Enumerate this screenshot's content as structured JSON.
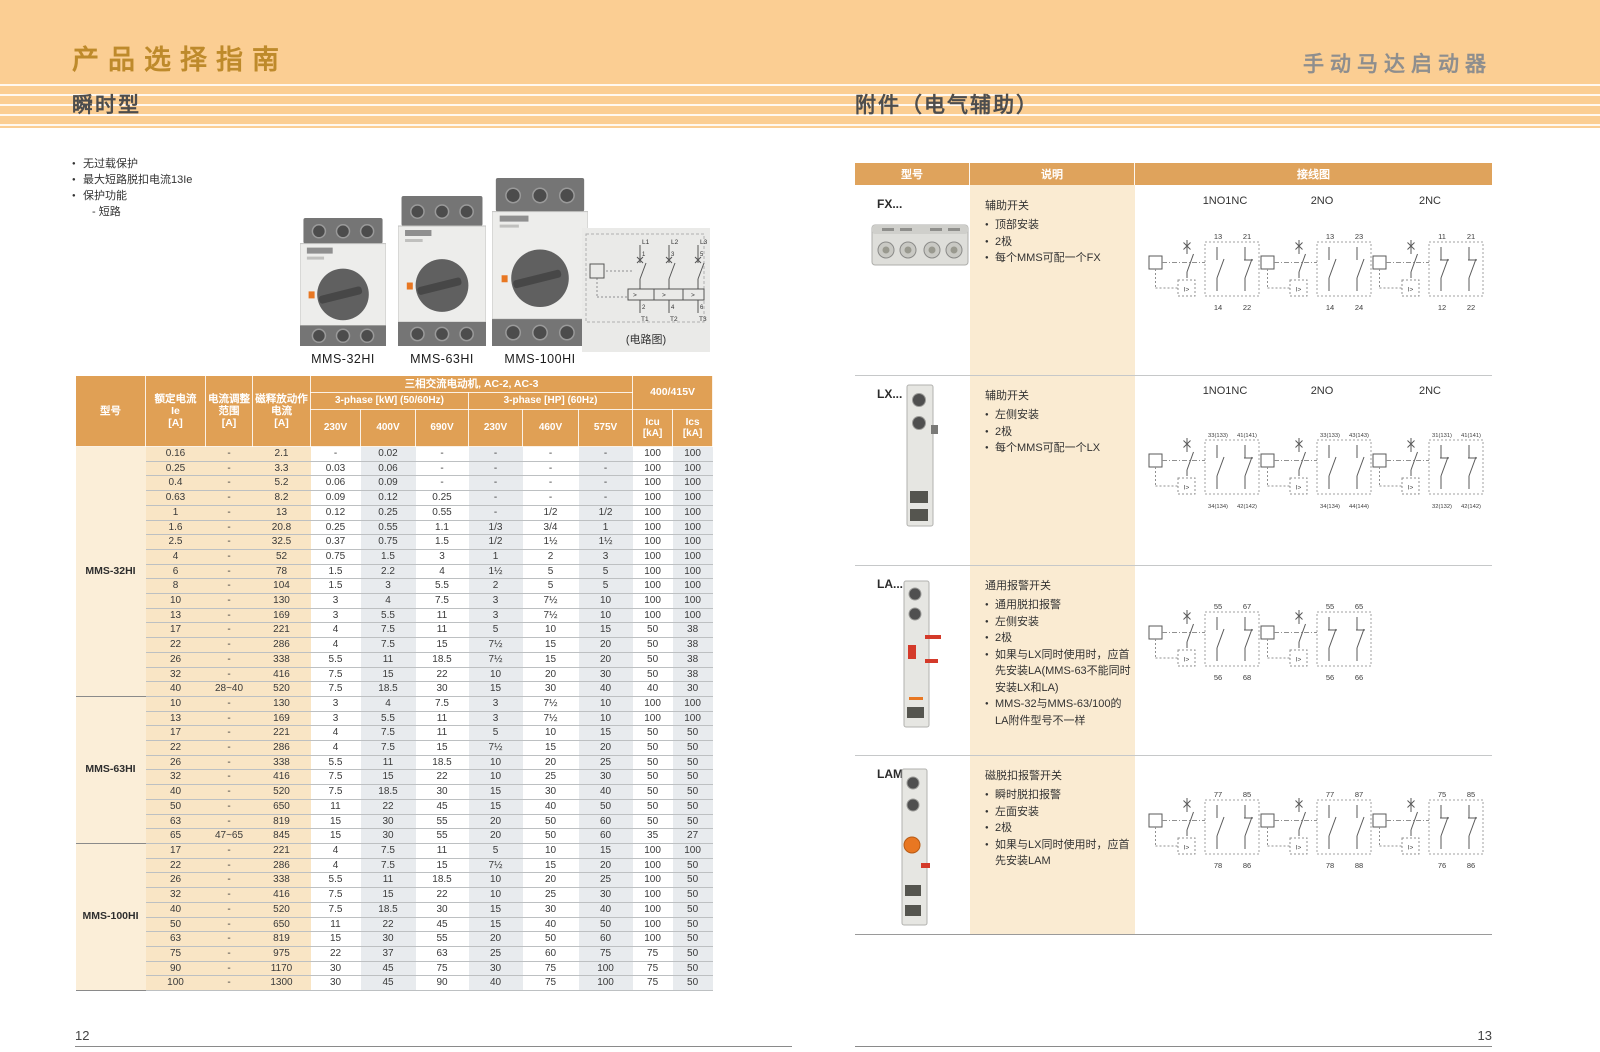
{
  "band": {
    "title_left": "产品选择指南",
    "title_right": "手动马达启动器",
    "section_left": "瞬时型",
    "section_right": "附件（电气辅助）"
  },
  "left": {
    "page_number": "12",
    "features": [
      "无过载保护",
      "最大短路脱扣电流13Ie",
      "保护功能"
    ],
    "feature_sub": "- 短路",
    "products": [
      "MMS-32HI",
      "MMS-63HI",
      "MMS-100HI"
    ],
    "circuit": {
      "caption": "(电路图)",
      "phases": [
        "L1",
        "L2",
        "L3"
      ],
      "top_terminals": [
        "1",
        "3",
        "5"
      ],
      "bottom_terminals": [
        "2",
        "4",
        "6"
      ],
      "outputs": [
        "T1",
        "T2",
        "T3"
      ]
    },
    "table": {
      "header": {
        "model": "型号",
        "rated_current": "额定电流\nIe\n[A]",
        "adjust_range": "电流调整\n范围\n[A]",
        "release_current": "磁释放动作\n电流\n[A]",
        "motor_group": "三相交流电动机, AC-2, AC-3",
        "kw_group": "3-phase [kW] (50/60Hz)",
        "hp_group": "3-phase [HP] (60Hz)",
        "voltage_group": "400/415V",
        "kw_volts": [
          "230V",
          "400V",
          "690V"
        ],
        "hp_volts": [
          "230V",
          "460V",
          "575V"
        ],
        "icu": "Icu\n[kA]",
        "ics": "Ics\n[kA]"
      },
      "groups": [
        {
          "model": "MMS-32HI",
          "rows": [
            [
              "0.16",
              "-",
              "2.1",
              "-",
              "0.02",
              "-",
              "-",
              "-",
              "-",
              "100",
              "100"
            ],
            [
              "0.25",
              "-",
              "3.3",
              "0.03",
              "0.06",
              "-",
              "-",
              "-",
              "-",
              "100",
              "100"
            ],
            [
              "0.4",
              "-",
              "5.2",
              "0.06",
              "0.09",
              "-",
              "-",
              "-",
              "-",
              "100",
              "100"
            ],
            [
              "0.63",
              "-",
              "8.2",
              "0.09",
              "0.12",
              "0.25",
              "-",
              "-",
              "-",
              "100",
              "100"
            ],
            [
              "1",
              "-",
              "13",
              "0.12",
              "0.25",
              "0.55",
              "-",
              "1/2",
              "1/2",
              "100",
              "100"
            ],
            [
              "1.6",
              "-",
              "20.8",
              "0.25",
              "0.55",
              "1.1",
              "1/3",
              "3/4",
              "1",
              "100",
              "100"
            ],
            [
              "2.5",
              "-",
              "32.5",
              "0.37",
              "0.75",
              "1.5",
              "1/2",
              "1½",
              "1½",
              "100",
              "100"
            ],
            [
              "4",
              "-",
              "52",
              "0.75",
              "1.5",
              "3",
              "1",
              "2",
              "3",
              "100",
              "100"
            ],
            [
              "6",
              "-",
              "78",
              "1.5",
              "2.2",
              "4",
              "1½",
              "5",
              "5",
              "100",
              "100"
            ],
            [
              "8",
              "-",
              "104",
              "1.5",
              "3",
              "5.5",
              "2",
              "5",
              "5",
              "100",
              "100"
            ],
            [
              "10",
              "-",
              "130",
              "3",
              "4",
              "7.5",
              "3",
              "7½",
              "10",
              "100",
              "100"
            ],
            [
              "13",
              "-",
              "169",
              "3",
              "5.5",
              "11",
              "3",
              "7½",
              "10",
              "100",
              "100"
            ],
            [
              "17",
              "-",
              "221",
              "4",
              "7.5",
              "11",
              "5",
              "10",
              "15",
              "50",
              "38"
            ],
            [
              "22",
              "-",
              "286",
              "4",
              "7.5",
              "15",
              "7½",
              "15",
              "20",
              "50",
              "38"
            ],
            [
              "26",
              "-",
              "338",
              "5.5",
              "11",
              "18.5",
              "7½",
              "15",
              "20",
              "50",
              "38"
            ],
            [
              "32",
              "-",
              "416",
              "7.5",
              "15",
              "22",
              "10",
              "20",
              "30",
              "50",
              "38"
            ],
            [
              "40",
              "28~40",
              "520",
              "7.5",
              "18.5",
              "30",
              "15",
              "30",
              "40",
              "40",
              "30"
            ]
          ]
        },
        {
          "model": "MMS-63HI",
          "rows": [
            [
              "10",
              "-",
              "130",
              "3",
              "4",
              "7.5",
              "3",
              "7½",
              "10",
              "100",
              "100"
            ],
            [
              "13",
              "-",
              "169",
              "3",
              "5.5",
              "11",
              "3",
              "7½",
              "10",
              "100",
              "100"
            ],
            [
              "17",
              "-",
              "221",
              "4",
              "7.5",
              "11",
              "5",
              "10",
              "15",
              "50",
              "50"
            ],
            [
              "22",
              "-",
              "286",
              "4",
              "7.5",
              "15",
              "7½",
              "15",
              "20",
              "50",
              "50"
            ],
            [
              "26",
              "-",
              "338",
              "5.5",
              "11",
              "18.5",
              "10",
              "20",
              "25",
              "50",
              "50"
            ],
            [
              "32",
              "-",
              "416",
              "7.5",
              "15",
              "22",
              "10",
              "25",
              "30",
              "50",
              "50"
            ],
            [
              "40",
              "-",
              "520",
              "7.5",
              "18.5",
              "30",
              "15",
              "30",
              "40",
              "50",
              "50"
            ],
            [
              "50",
              "-",
              "650",
              "11",
              "22",
              "45",
              "15",
              "40",
              "50",
              "50",
              "50"
            ],
            [
              "63",
              "-",
              "819",
              "15",
              "30",
              "55",
              "20",
              "50",
              "60",
              "50",
              "50"
            ],
            [
              "65",
              "47~65",
              "845",
              "15",
              "30",
              "55",
              "20",
              "50",
              "60",
              "35",
              "27"
            ]
          ]
        },
        {
          "model": "MMS-100HI",
          "rows": [
            [
              "17",
              "-",
              "221",
              "4",
              "7.5",
              "11",
              "5",
              "10",
              "15",
              "100",
              "100"
            ],
            [
              "22",
              "-",
              "286",
              "4",
              "7.5",
              "15",
              "7½",
              "15",
              "20",
              "100",
              "50"
            ],
            [
              "26",
              "-",
              "338",
              "5.5",
              "11",
              "18.5",
              "10",
              "20",
              "25",
              "100",
              "50"
            ],
            [
              "32",
              "-",
              "416",
              "7.5",
              "15",
              "22",
              "10",
              "25",
              "30",
              "100",
              "50"
            ],
            [
              "40",
              "-",
              "520",
              "7.5",
              "18.5",
              "30",
              "15",
              "30",
              "40",
              "100",
              "50"
            ],
            [
              "50",
              "-",
              "650",
              "11",
              "22",
              "45",
              "15",
              "40",
              "50",
              "100",
              "50"
            ],
            [
              "63",
              "-",
              "819",
              "15",
              "30",
              "55",
              "20",
              "50",
              "60",
              "100",
              "50"
            ],
            [
              "75",
              "-",
              "975",
              "22",
              "37",
              "63",
              "25",
              "60",
              "75",
              "75",
              "50"
            ],
            [
              "90",
              "-",
              "1170",
              "30",
              "45",
              "75",
              "30",
              "75",
              "100",
              "75",
              "50"
            ],
            [
              "100",
              "-",
              "1300",
              "30",
              "45",
              "90",
              "40",
              "75",
              "100",
              "75",
              "50"
            ]
          ]
        }
      ]
    }
  },
  "right": {
    "page_number": "13",
    "table_header": [
      "型号",
      "说明",
      "接线图"
    ],
    "accessories": [
      {
        "model": "FX...",
        "image": "fx",
        "title": "辅助开关",
        "bullets": [
          "顶部安装",
          "2极",
          "每个MMS可配一个FX"
        ],
        "diagram_labels": [
          "1NO1NC",
          "2NO",
          "2NC"
        ],
        "diagrams": [
          {
            "contacts": [
              "NO",
              "NC"
            ],
            "t": [
              "13",
              "21"
            ],
            "b": [
              "14",
              "22"
            ]
          },
          {
            "contacts": [
              "NO",
              "NO"
            ],
            "t": [
              "13",
              "23"
            ],
            "b": [
              "14",
              "24"
            ]
          },
          {
            "contacts": [
              "NC",
              "NC"
            ],
            "t": [
              "11",
              "21"
            ],
            "b": [
              "12",
              "22"
            ]
          }
        ]
      },
      {
        "model": "LX...",
        "image": "lx",
        "title": "辅助开关",
        "bullets": [
          "左侧安装",
          "2极",
          "每个MMS可配一个LX"
        ],
        "diagram_labels": [
          "1NO1NC",
          "2NO",
          "2NC"
        ],
        "diagrams": [
          {
            "contacts": [
              "NO",
              "NC"
            ],
            "t": [
              "33(133)",
              "41(141)"
            ],
            "b": [
              "34(134)",
              "42(142)"
            ]
          },
          {
            "contacts": [
              "NO",
              "NO"
            ],
            "t": [
              "33(133)",
              "43(143)"
            ],
            "b": [
              "34(134)",
              "44(144)"
            ]
          },
          {
            "contacts": [
              "NC",
              "NC"
            ],
            "t": [
              "31(131)",
              "41(141)"
            ],
            "b": [
              "32(132)",
              "42(142)"
            ]
          }
        ]
      },
      {
        "model": "LA...",
        "image": "la",
        "title": "通用报警开关",
        "bullets": [
          "通用脱扣报警",
          "左侧安装",
          "2极",
          "如果与LX同时使用时，应首先安装LA(MMS-63不能同时安装LX和LA)",
          "MMS-32与MMS-63/100的LA附件型号不一样"
        ],
        "diagram_labels": [],
        "diagrams": [
          {
            "contacts": [
              "NO",
              "NC"
            ],
            "t": [
              "55",
              "67"
            ],
            "b": [
              "56",
              "68"
            ]
          },
          {
            "contacts": [
              "NC",
              "NC"
            ],
            "t": [
              "55",
              "65"
            ],
            "b": [
              "56",
              "66"
            ]
          }
        ]
      },
      {
        "model": "LAM...",
        "image": "lam",
        "title": "磁脱扣报警开关",
        "bullets": [
          "瞬时脱扣报警",
          "左面安装",
          "2极",
          "如果与LX同时使用时，应首先安装LAM"
        ],
        "diagram_labels": [],
        "diagrams": [
          {
            "contacts": [
              "NO",
              "NC"
            ],
            "t": [
              "77",
              "85"
            ],
            "b": [
              "78",
              "86"
            ]
          },
          {
            "contacts": [
              "NO",
              "NO"
            ],
            "t": [
              "77",
              "87"
            ],
            "b": [
              "78",
              "88"
            ]
          },
          {
            "contacts": [
              "NC",
              "NC"
            ],
            "t": [
              "75",
              "85"
            ],
            "b": [
              "76",
              "86"
            ]
          }
        ]
      }
    ]
  },
  "colors": {
    "band": "#FBCE93",
    "title_gold": "#BE8A2B",
    "title_gray": "#8E8E8E",
    "header_orange": "#E0A055",
    "peach_cell": "#F9E5C5",
    "model_cell": "#FBEED8",
    "alt_column": "#E8EBEE",
    "desc_bg": "#FAEBD2"
  }
}
